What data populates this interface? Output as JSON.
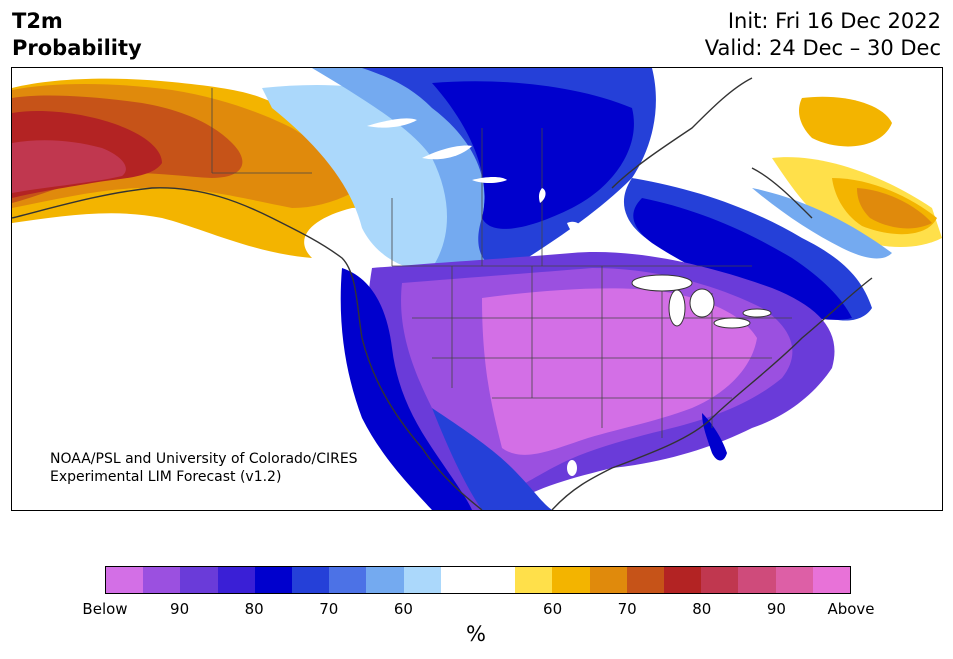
{
  "title": {
    "left_line1": "T2m",
    "left_line2": "Probability",
    "right_line1": "Init: Fri 16 Dec 2022",
    "right_line2": "Valid: 24 Dec – 30 Dec"
  },
  "credit": {
    "line1": "NOAA/PSL and University of Colorado/CIRES",
    "line2": "Experimental LIM Forecast (v1.2)"
  },
  "colorbar": {
    "colors": [
      "#d36fe6",
      "#9b50e0",
      "#6a3bd9",
      "#3a1fd6",
      "#0000cd",
      "#2540d8",
      "#4c72e6",
      "#74aaf0",
      "#abd8fb",
      "#ffffff",
      "#ffffff",
      "#ffe04a",
      "#f3b400",
      "#e08a0c",
      "#c65318",
      "#b32323",
      "#c0374f",
      "#cf4b7b",
      "#dd5fa6",
      "#e872d8"
    ],
    "ticks": [
      "Below",
      "90",
      "80",
      "70",
      "60",
      "60",
      "70",
      "80",
      "90",
      "Above"
    ],
    "unit": "%"
  },
  "map": {
    "region": "North America",
    "legend_meaning": "Probability of below / above normal 2m temperature",
    "colors": {
      "strong_below": "#0000cd",
      "below": "#2540d8",
      "mild_below": "#74aaf0",
      "light_below": "#abd8fb",
      "neutral": "#ffffff",
      "light_above": "#ffe04a",
      "above": "#f3b400",
      "warm_above": "#e08a0c",
      "strong_above": "#c65318",
      "very_above": "#b32323",
      "extreme_above": "#c0374f",
      "purple_below": "#9b50e0",
      "violet_below": "#d36fe6"
    }
  }
}
